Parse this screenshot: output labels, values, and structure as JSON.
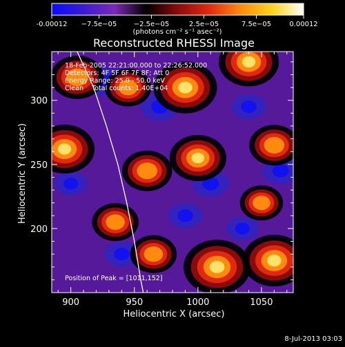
{
  "colorbar": {
    "ticks": [
      "-0.00012",
      "−7.5e−05",
      "−2.5e−05",
      "2.5e−05",
      "7.5e−05",
      "0.00012"
    ],
    "unit_label": "(photons cm⁻² s⁻¹ asec⁻²)",
    "colors": [
      "#0b0bff",
      "#3a1bd0",
      "#7a2bb5",
      "#000000",
      "#8a0b0b",
      "#e02a10",
      "#ff8a10",
      "#ffd51a",
      "#ffffff"
    ]
  },
  "chart_data": {
    "type": "heatmap",
    "title": "Reconstructed RHESSI Image",
    "xlabel": "Heliocentric X (arcsec)",
    "ylabel": "Heliocentric Y (arcsec)",
    "xlim": [
      885,
      1075
    ],
    "ylim": [
      150,
      338
    ],
    "xticks": [
      900,
      950,
      1000,
      1050
    ],
    "yticks": [
      200,
      250,
      300
    ],
    "value_range": [
      -0.00012,
      0.00012
    ],
    "annotations": [
      "18-Feb-2005 22:21:00.000 to 22:26:52.000",
      "Detectors: 4F 5F 6F 7F 8F; Att 0",
      "Energy Range: 25.0 - 50.0 keV",
      "Clean    Total counts: 1.40E+04"
    ],
    "peak_label": "Position of Peak = [1011,152]",
    "peak_position": [
      1011,
      152
    ],
    "hot_spots": [
      {
        "x": 990,
        "y": 310,
        "value": 0.00011
      },
      {
        "x": 1040,
        "y": 330,
        "value": 0.0001
      },
      {
        "x": 1000,
        "y": 255,
        "value": 9e-05
      },
      {
        "x": 1015,
        "y": 170,
        "value": 0.00012
      },
      {
        "x": 1060,
        "y": 175,
        "value": 0.00011
      },
      {
        "x": 895,
        "y": 262,
        "value": 0.0001
      },
      {
        "x": 960,
        "y": 245,
        "value": 7e-05
      },
      {
        "x": 935,
        "y": 205,
        "value": 6e-05
      },
      {
        "x": 905,
        "y": 318,
        "value": 8e-05
      },
      {
        "x": 945,
        "y": 310,
        "value": 6e-05
      },
      {
        "x": 1060,
        "y": 265,
        "value": 7e-05
      },
      {
        "x": 965,
        "y": 180,
        "value": 6e-05
      },
      {
        "x": 1050,
        "y": 220,
        "value": 5e-05
      }
    ],
    "cool_spots": [
      {
        "x": 925,
        "y": 315,
        "value": -8e-05
      },
      {
        "x": 970,
        "y": 295,
        "value": -7e-05
      },
      {
        "x": 1010,
        "y": 235,
        "value": -6e-05
      },
      {
        "x": 1065,
        "y": 245,
        "value": -6e-05
      },
      {
        "x": 990,
        "y": 210,
        "value": -5e-05
      },
      {
        "x": 1040,
        "y": 295,
        "value": -5e-05
      },
      {
        "x": 900,
        "y": 235,
        "value": -4e-05
      },
      {
        "x": 940,
        "y": 180,
        "value": -5e-05
      },
      {
        "x": 1035,
        "y": 200,
        "value": -4e-05
      }
    ],
    "limb_arc": [
      [
        905,
        338
      ],
      [
        918,
        310
      ],
      [
        928,
        280
      ],
      [
        937,
        250
      ],
      [
        944,
        220
      ],
      [
        950,
        190
      ],
      [
        955,
        160
      ],
      [
        957,
        150
      ]
    ]
  },
  "footer": {
    "timestamp": "8-Jul-2013 03:03"
  }
}
